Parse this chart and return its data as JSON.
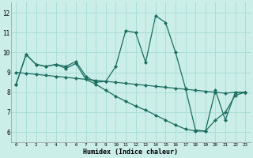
{
  "x": [
    0,
    1,
    2,
    3,
    4,
    5,
    6,
    7,
    8,
    9,
    10,
    11,
    12,
    13,
    14,
    15,
    16,
    17,
    18,
    19,
    20,
    21,
    22,
    23
  ],
  "line1": [
    8.4,
    9.9,
    9.4,
    9.3,
    9.4,
    9.3,
    9.55,
    8.8,
    8.5,
    8.55,
    9.3,
    11.1,
    11.0,
    9.5,
    11.85,
    11.5,
    10.0,
    8.2,
    6.1,
    6.05,
    8.1,
    6.6,
    8.0,
    8.0
  ],
  "line2": [
    9.0,
    8.95,
    8.9,
    8.85,
    8.8,
    8.75,
    8.7,
    8.65,
    8.6,
    8.55,
    8.5,
    8.45,
    8.4,
    8.35,
    8.3,
    8.25,
    8.2,
    8.15,
    8.1,
    8.05,
    8.0,
    7.95,
    8.0,
    8.0
  ],
  "line3": [
    8.4,
    9.9,
    9.4,
    9.3,
    9.4,
    9.2,
    9.45,
    8.65,
    8.4,
    8.1,
    7.8,
    7.55,
    7.3,
    7.1,
    6.85,
    6.6,
    6.35,
    6.15,
    6.05,
    6.05,
    6.6,
    7.0,
    7.85,
    8.0
  ],
  "bg_color": "#cceee8",
  "grid_color": "#aaddda",
  "line_color": "#1a6e60",
  "xlabel": "Humidex (Indice chaleur)",
  "xlim": [
    -0.5,
    23.5
  ],
  "ylim": [
    5.5,
    12.5
  ],
  "yticks": [
    6,
    7,
    8,
    9,
    10,
    11,
    12
  ],
  "xticks": [
    0,
    1,
    2,
    3,
    4,
    5,
    6,
    7,
    8,
    9,
    10,
    11,
    12,
    13,
    14,
    15,
    16,
    17,
    18,
    19,
    20,
    21,
    22,
    23
  ]
}
